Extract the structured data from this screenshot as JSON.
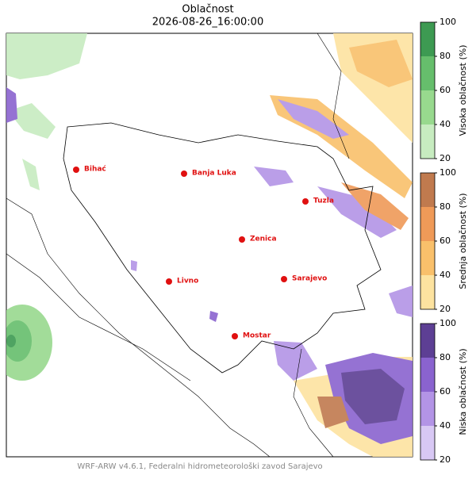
{
  "header": {
    "title": "Oblačnost",
    "subtitle": "2026-08-26_16:00:00"
  },
  "cities": [
    "Bihać",
    "Banja Luka",
    "Tuzla",
    "Zenica",
    "Livno",
    "Sarajevo",
    "Mostar"
  ],
  "colorbars": [
    {
      "label": "Visoka oblačnost (%)",
      "ticks": [
        20,
        40,
        60,
        80,
        100
      ],
      "colors": [
        "#c7ecc0",
        "#98d98e",
        "#66be6c",
        "#3d9a52"
      ]
    },
    {
      "label": "Srednja oblačnost (%)",
      "ticks": [
        20,
        40,
        60,
        80,
        100
      ],
      "colors": [
        "#fde3a0",
        "#f9c06b",
        "#ef9a58",
        "#c07a4e"
      ]
    },
    {
      "label": "Niska oblačnost (%)",
      "ticks": [
        20,
        40,
        60,
        80,
        100
      ],
      "colors": [
        "#d8c8f4",
        "#b394e6",
        "#8a63cf",
        "#5d3f94"
      ]
    }
  ],
  "footer": "WRF-ARW v4.6.1, Federalni hidrometeorološki zavod Sarajevo"
}
